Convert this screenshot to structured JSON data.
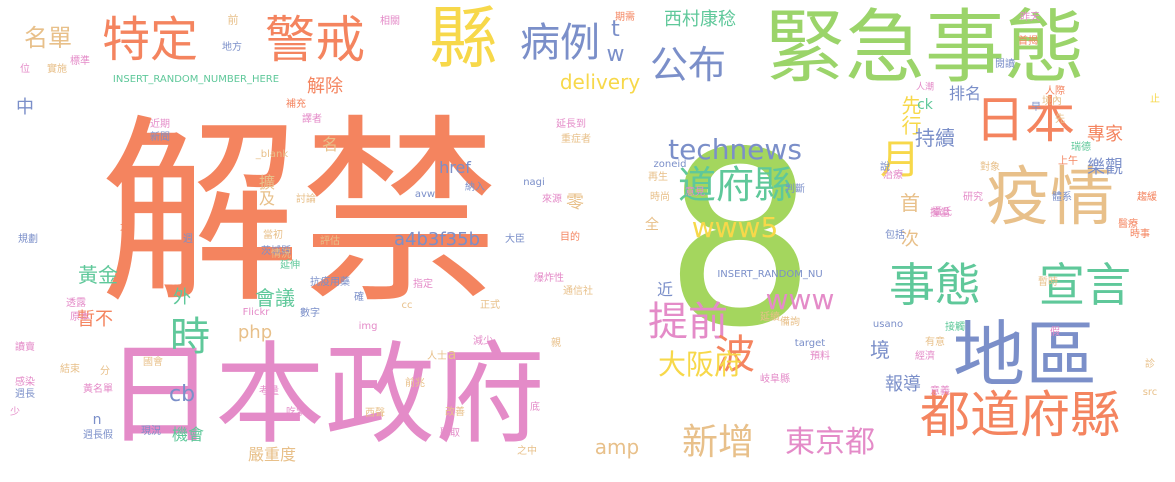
{
  "words": [
    {
      "text": "解禁",
      "color": "#f4845f"
    },
    {
      "text": "8",
      "color": "#a4d65e"
    },
    {
      "text": "日本政府",
      "color": "#e48bc8"
    },
    {
      "text": "緊急事態",
      "color": "#9bd46a"
    },
    {
      "text": "縣",
      "color": "#f7d84a"
    },
    {
      "text": "警戒",
      "color": "#f4845f"
    },
    {
      "text": "特定",
      "color": "#f4845f"
    },
    {
      "text": "病例",
      "color": "#7b8fc9"
    },
    {
      "text": "疫情",
      "color": "#e8c08a"
    },
    {
      "text": "日本",
      "color": "#f4845f"
    },
    {
      "text": "事態",
      "color": "#5fc89a"
    },
    {
      "text": "宣言",
      "color": "#5fc89a"
    },
    {
      "text": "地區",
      "color": "#7b8fc9"
    },
    {
      "text": "都道府縣",
      "color": "#f4845f"
    },
    {
      "text": "公布",
      "color": "#7b8fc9"
    },
    {
      "text": "道府縣",
      "color": "#5fc89a"
    },
    {
      "text": "technews",
      "color": "#7b8fc9"
    },
    {
      "text": "www5",
      "color": "#f7d84a"
    },
    {
      "text": "提前",
      "color": "#e48bc8"
    },
    {
      "text": "波",
      "color": "#f4845f"
    },
    {
      "text": "大阪府",
      "color": "#f7d84a"
    },
    {
      "text": "www",
      "color": "#e48bc8"
    },
    {
      "text": "新增",
      "color": "#e8c08a"
    },
    {
      "text": "東京都",
      "color": "#e48bc8"
    },
    {
      "text": "時",
      "color": "#5fc89a"
    },
    {
      "text": "月",
      "color": "#f7d84a"
    },
    {
      "text": "西村康稔",
      "color": "#5fc89a"
    },
    {
      "text": "tw",
      "color": "#7b8fc9"
    },
    {
      "text": "delivery",
      "color": "#f7d84a"
    },
    {
      "text": "名單",
      "color": "#e8c08a"
    },
    {
      "text": "解除",
      "color": "#f4845f"
    },
    {
      "text": "先行",
      "color": "#f7d84a"
    },
    {
      "text": "持續",
      "color": "#7b8fc9"
    },
    {
      "text": "專家",
      "color": "#f4845f"
    },
    {
      "text": "排名",
      "color": "#7b8fc9"
    },
    {
      "text": "樂觀",
      "color": "#7b8fc9"
    },
    {
      "text": "首",
      "color": "#e8c08a"
    },
    {
      "text": "次",
      "color": "#e8c08a"
    },
    {
      "text": "境",
      "color": "#7b8fc9"
    },
    {
      "text": "報導",
      "color": "#7b8fc9"
    },
    {
      "text": "a4b3f35b",
      "color": "#7b8fc9"
    },
    {
      "text": "href",
      "color": "#7b8fc9"
    },
    {
      "text": "零",
      "color": "#e8c08a"
    },
    {
      "text": "擴及",
      "color": "#e8c08a"
    },
    {
      "text": "黃金",
      "color": "#5fc89a"
    },
    {
      "text": "外",
      "color": "#5fc89a"
    },
    {
      "text": "會議",
      "color": "#5fc89a"
    },
    {
      "text": "php",
      "color": "#e8c08a"
    },
    {
      "text": "cb",
      "color": "#7b8fc9"
    },
    {
      "text": "暫不",
      "color": "#f4845f"
    },
    {
      "text": "amp",
      "color": "#e8c08a"
    },
    {
      "text": "機會",
      "color": "#5fc89a"
    },
    {
      "text": "嚴重度",
      "color": "#e8c08a"
    },
    {
      "text": "中",
      "color": "#7b8fc9"
    },
    {
      "text": "近",
      "color": "#7b8fc9"
    },
    {
      "text": "全",
      "color": "#e8c08a"
    },
    {
      "text": "n",
      "color": "#7b8fc9"
    },
    {
      "text": "a",
      "color": "#e8c08a"
    },
    {
      "text": "ck",
      "color": "#5fc89a"
    },
    {
      "text": "名",
      "color": "#e8c08a"
    },
    {
      "text": "INSERT_RANDOM_NUMBER_HERE",
      "color": "#5fc89a"
    },
    {
      "text": "INSERT_RANDOM_NU",
      "color": "#7b8fc9"
    },
    {
      "text": "前",
      "color": "#e8c08a"
    },
    {
      "text": "地方",
      "color": "#7b8fc9"
    },
    {
      "text": "相關",
      "color": "#e48bc8"
    },
    {
      "text": "期需",
      "color": "#f4845f"
    },
    {
      "text": "昨天",
      "color": "#e48bc8"
    },
    {
      "text": "首揭",
      "color": "#f4845f"
    },
    {
      "text": "閱讀",
      "color": "#7b8fc9"
    },
    {
      "text": "人潮",
      "color": "#e48bc8"
    },
    {
      "text": "人際",
      "color": "#f4845f"
    },
    {
      "text": "止",
      "color": "#f7d84a"
    },
    {
      "text": "標準",
      "color": "#e48bc8"
    },
    {
      "text": "實施",
      "color": "#e8c08a"
    },
    {
      "text": "位",
      "color": "#e48bc8"
    },
    {
      "text": "近期",
      "color": "#e48bc8"
    },
    {
      "text": "新聞",
      "color": "#7b8fc9"
    },
    {
      "text": "譯者",
      "color": "#e48bc8"
    },
    {
      "text": "補充",
      "color": "#f4845f"
    },
    {
      "text": "延長到",
      "color": "#e48bc8"
    },
    {
      "text": "重症者",
      "color": "#e8c08a"
    },
    {
      "text": "_blank",
      "color": "#e8c08a"
    },
    {
      "text": "討論",
      "color": "#e8c08a"
    },
    {
      "text": "avw",
      "color": "#7b8fc9"
    },
    {
      "text": "納入",
      "color": "#7b8fc9"
    },
    {
      "text": "nagi",
      "color": "#7b8fc9"
    },
    {
      "text": "來源",
      "color": "#e48bc8"
    },
    {
      "text": "zoneid",
      "color": "#7b8fc9"
    },
    {
      "text": "再生",
      "color": "#e8c08a"
    },
    {
      "text": "時尚",
      "color": "#e8c08a"
    },
    {
      "text": "意見",
      "color": "#e48bc8"
    },
    {
      "text": "判斷",
      "color": "#7b8fc9"
    },
    {
      "text": "規劃",
      "color": "#7b8fc9"
    },
    {
      "text": "太",
      "color": "#f4845f"
    },
    {
      "text": "週",
      "color": "#7b8fc9"
    },
    {
      "text": "茨城縣",
      "color": "#7b8fc9"
    },
    {
      "text": "當初",
      "color": "#e8c08a"
    },
    {
      "text": "情況",
      "color": "#e8c08a"
    },
    {
      "text": "延伸",
      "color": "#5fc89a"
    },
    {
      "text": "評估",
      "color": "#e8c08a"
    },
    {
      "text": "大臣",
      "color": "#7b8fc9"
    },
    {
      "text": "目的",
      "color": "#f4845f"
    },
    {
      "text": "抗疫用藥",
      "color": "#7b8fc9"
    },
    {
      "text": "爆炸性",
      "color": "#e48bc8"
    },
    {
      "text": "確",
      "color": "#7b8fc9"
    },
    {
      "text": "指定",
      "color": "#e48bc8"
    },
    {
      "text": "通信社",
      "color": "#e8c08a"
    },
    {
      "text": "透露",
      "color": "#e48bc8"
    },
    {
      "text": "原本",
      "color": "#e48bc8"
    },
    {
      "text": "Flickr",
      "color": "#e48bc8"
    },
    {
      "text": "數字",
      "color": "#7b8fc9"
    },
    {
      "text": "cc",
      "color": "#e8c08a"
    },
    {
      "text": "正式",
      "color": "#e8c08a"
    },
    {
      "text": "img",
      "color": "#e48bc8"
    },
    {
      "text": "人士",
      "color": "#e8c08a"
    },
    {
      "text": "減少",
      "color": "#e48bc8"
    },
    {
      "text": "親",
      "color": "#e8c08a"
    },
    {
      "text": "讀賣",
      "color": "#e48bc8"
    },
    {
      "text": "國會",
      "color": "#e8c08a"
    },
    {
      "text": "結束",
      "color": "#e8c08a"
    },
    {
      "text": "分",
      "color": "#e8c08a"
    },
    {
      "text": "黃名單",
      "color": "#e48bc8"
    },
    {
      "text": "前兆",
      "color": "#e8c08a"
    },
    {
      "text": "感染",
      "color": "#e48bc8"
    },
    {
      "text": "週長",
      "color": "#7b8fc9"
    },
    {
      "text": "考量",
      "color": "#e48bc8"
    },
    {
      "text": "吃緊",
      "color": "#e48bc8"
    },
    {
      "text": "西聲",
      "color": "#e8c08a"
    },
    {
      "text": "改善",
      "color": "#e8c08a"
    },
    {
      "text": "底",
      "color": "#e48bc8"
    },
    {
      "text": "聽取",
      "color": "#e48bc8"
    },
    {
      "text": "少",
      "color": "#e48bc8"
    },
    {
      "text": "週長假",
      "color": "#7b8fc9"
    },
    {
      "text": "現況",
      "color": "#7b8fc9"
    },
    {
      "text": "之中",
      "color": "#e8c08a"
    },
    {
      "text": "延續",
      "color": "#e8c08a"
    },
    {
      "text": "備詢",
      "color": "#e8c08a"
    },
    {
      "text": "target",
      "color": "#7b8fc9"
    },
    {
      "text": "預料",
      "color": "#e48bc8"
    },
    {
      "text": "岐阜縣",
      "color": "#e48bc8"
    },
    {
      "text": "usano",
      "color": "#7b8fc9"
    },
    {
      "text": "接觸",
      "color": "#5fc89a"
    },
    {
      "text": "有意",
      "color": "#e8c08a"
    },
    {
      "text": "經濟",
      "color": "#e48bc8"
    },
    {
      "text": "意義",
      "color": "#e48bc8"
    },
    {
      "text": "src",
      "color": "#e8c08a"
    },
    {
      "text": "診",
      "color": "#e8c08a"
    },
    {
      "text": "假",
      "color": "#e48bc8"
    },
    {
      "text": "暫時",
      "color": "#e8c08a"
    },
    {
      "text": "時事",
      "color": "#f4845f"
    },
    {
      "text": "醫療",
      "color": "#f4845f"
    },
    {
      "text": "趨緩",
      "color": "#f4845f"
    },
    {
      "text": "體系",
      "color": "#7b8fc9"
    },
    {
      "text": "研究",
      "color": "#e48bc8"
    },
    {
      "text": "治療",
      "color": "#e48bc8"
    },
    {
      "text": "說",
      "color": "#7b8fc9"
    },
    {
      "text": "瑞德",
      "color": "#5fc89a"
    },
    {
      "text": "對象",
      "color": "#e8c08a"
    },
    {
      "text": "上午",
      "color": "#f4845f"
    },
    {
      "text": "包括",
      "color": "#7b8fc9"
    },
    {
      "text": "攝氏",
      "color": "#e48bc8"
    },
    {
      "text": "先",
      "color": "#e8c08a"
    },
    {
      "text": "境內",
      "color": "#e8c08a"
    },
    {
      "text": "早",
      "color": "#7b8fc9"
    },
    {
      "text": "撞當",
      "color": "#e48bc8"
    }
  ]
}
